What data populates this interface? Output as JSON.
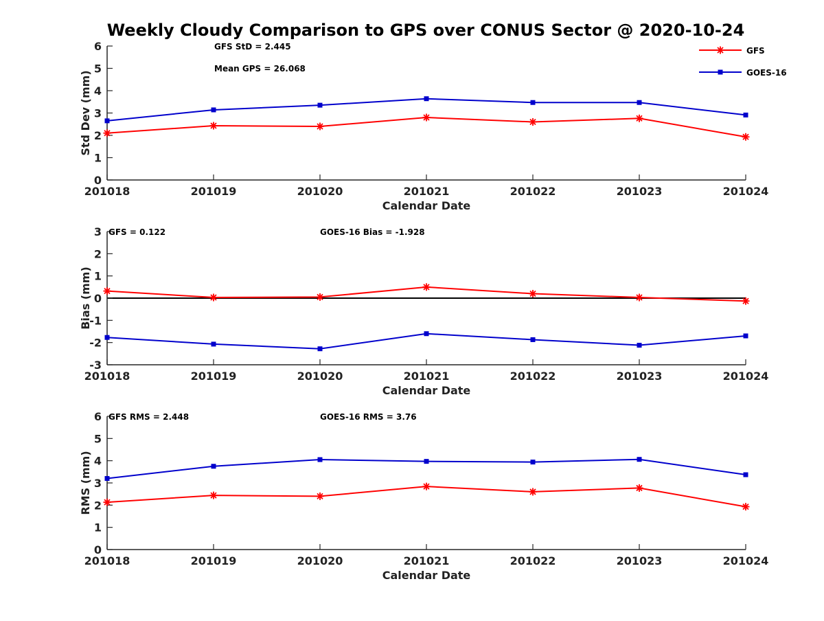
{
  "figure_title": "Weekly Cloudy Comparison to GPS over CONUS Sector @ 2020-10-24",
  "colors": {
    "GFS": "#ff0000",
    "GOES-16": "#0000cc",
    "zero_line": "#000000",
    "axis": "#262626"
  },
  "chart_data": [
    {
      "type": "line",
      "title": "",
      "xlabel": "Calendar Date",
      "ylabel": "Std Dev (mm)",
      "x": [
        "201018",
        "201019",
        "201020",
        "201021",
        "201022",
        "201023",
        "201024"
      ],
      "ylim": [
        0,
        6
      ],
      "yticks": [
        0,
        1,
        2,
        3,
        4,
        5,
        6
      ],
      "series": [
        {
          "name": "GFS",
          "marker": "asterisk",
          "values": [
            2.1,
            2.43,
            2.4,
            2.8,
            2.6,
            2.76,
            1.93
          ]
        },
        {
          "name": "GOES-16",
          "marker": "square",
          "values": [
            2.65,
            3.14,
            3.35,
            3.64,
            3.47,
            3.47,
            2.91
          ]
        }
      ],
      "annotations": [
        "GFS StD = 2.445",
        "Mean GPS = 26.068"
      ],
      "legend": {
        "placement": "top-right",
        "entries": [
          "GFS",
          "GOES-16"
        ]
      },
      "zero_line": false
    },
    {
      "type": "line",
      "title": "",
      "xlabel": "Calendar Date",
      "ylabel": "Bias (mm)",
      "x": [
        "201018",
        "201019",
        "201020",
        "201021",
        "201022",
        "201023",
        "201024"
      ],
      "ylim": [
        -3,
        3
      ],
      "yticks": [
        -3,
        -2,
        -1,
        0,
        1,
        2,
        3
      ],
      "series": [
        {
          "name": "GFS",
          "marker": "asterisk",
          "values": [
            0.32,
            0.03,
            0.05,
            0.5,
            0.2,
            0.03,
            -0.13
          ]
        },
        {
          "name": "GOES-16",
          "marker": "square",
          "values": [
            -1.77,
            -2.07,
            -2.28,
            -1.6,
            -1.87,
            -2.12,
            -1.7
          ]
        }
      ],
      "annotations": [
        "GFS = 0.122",
        "GOES-16 Bias  = -1.928"
      ],
      "zero_line": true
    },
    {
      "type": "line",
      "title": "",
      "xlabel": "Calendar Date",
      "ylabel": "RMS (mm)",
      "x": [
        "201018",
        "201019",
        "201020",
        "201021",
        "201022",
        "201023",
        "201024"
      ],
      "ylim": [
        0,
        6
      ],
      "yticks": [
        0,
        1,
        2,
        3,
        4,
        5,
        6
      ],
      "series": [
        {
          "name": "GFS",
          "marker": "asterisk",
          "values": [
            2.13,
            2.44,
            2.4,
            2.84,
            2.6,
            2.77,
            1.93
          ]
        },
        {
          "name": "GOES-16",
          "marker": "square",
          "values": [
            3.2,
            3.75,
            4.05,
            3.97,
            3.94,
            4.06,
            3.37
          ]
        }
      ],
      "annotations": [
        "GFS RMS = 2.448",
        "GOES-16 RMS = 3.76"
      ],
      "zero_line": false
    }
  ]
}
